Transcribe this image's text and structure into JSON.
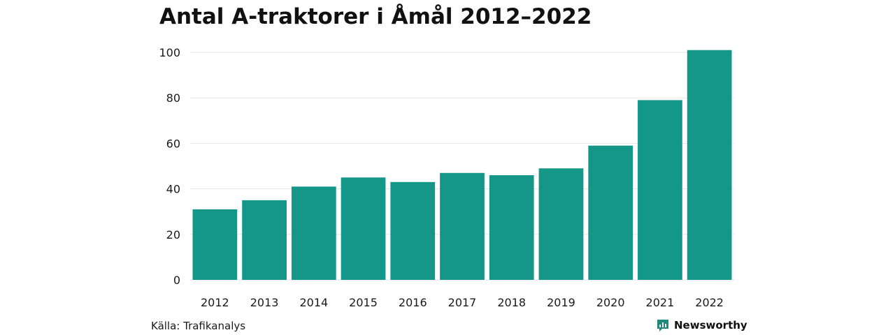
{
  "chart_data": {
    "type": "bar",
    "title": "Antal A-traktorer i Åmål 2012–2022",
    "xlabel": "",
    "ylabel": "",
    "categories": [
      "2012",
      "2013",
      "2014",
      "2015",
      "2016",
      "2017",
      "2018",
      "2019",
      "2020",
      "2021",
      "2022"
    ],
    "values": [
      31,
      35,
      41,
      45,
      43,
      47,
      46,
      49,
      59,
      79,
      101
    ],
    "ylim": [
      0,
      100
    ],
    "yticks": [
      0,
      20,
      40,
      60,
      80,
      100
    ],
    "grid": true,
    "legend": "none"
  },
  "colors": {
    "bar": "#149689",
    "grid": "#e3e3e3",
    "brand": "#1f8a7c"
  },
  "source": "Källa: Trafikanalys",
  "brand": {
    "name": "Newsworthy",
    "icon": "newsworthy-logo-icon"
  }
}
